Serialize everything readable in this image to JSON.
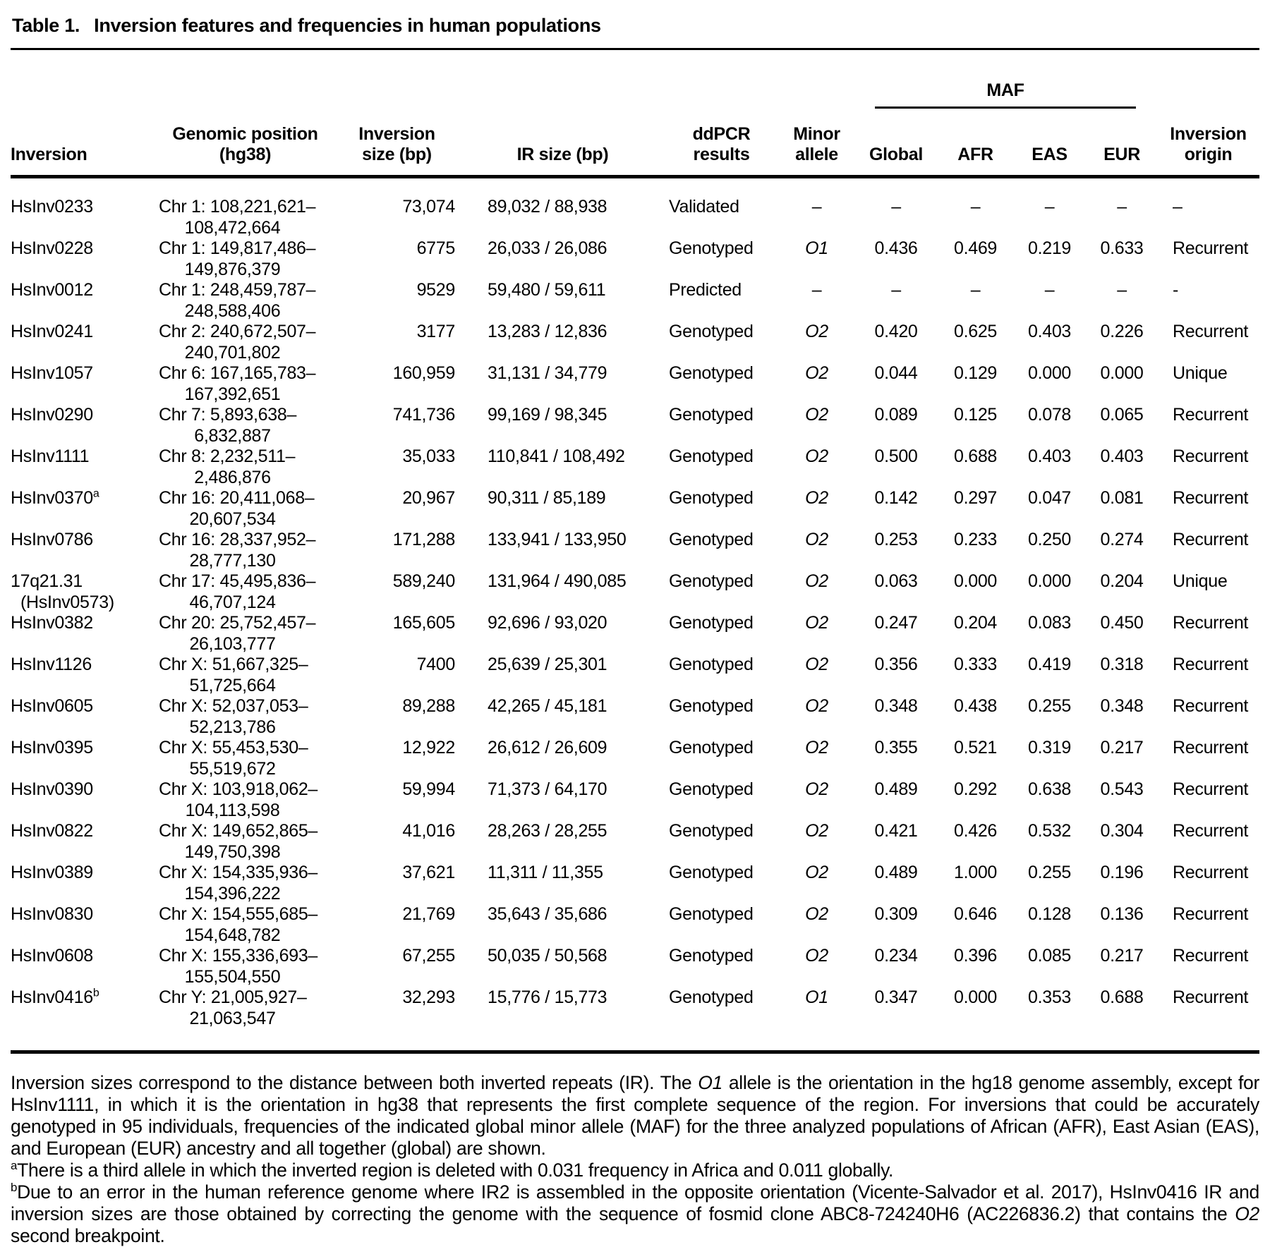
{
  "title": {
    "label": "Table 1.",
    "text": "Inversion features and frequencies in human populations"
  },
  "table": {
    "maf_header": "MAF",
    "headers": {
      "inversion": "Inversion",
      "position": "Genomic position\n(hg38)",
      "inv_size": "Inversion\nsize (bp)",
      "ir_size": "IR size (bp)",
      "ddpcr": "ddPCR\nresults",
      "minor": "Minor\nallele",
      "global": "Global",
      "afr": "AFR",
      "eas": "EAS",
      "eur": "EUR",
      "origin": "Inversion\norigin"
    },
    "rows": [
      {
        "name": "HsInv0233",
        "sup": "",
        "name2": "",
        "pos1": "Chr 1: 108,221,621–",
        "pos2": "108,472,664",
        "size": "73,074",
        "ir": "89,032 / 88,938",
        "ddpcr": "Validated",
        "minor": "–",
        "g": "–",
        "afr": "–",
        "eas": "–",
        "eur": "–",
        "origin": "–"
      },
      {
        "name": "HsInv0228",
        "sup": "",
        "name2": "",
        "pos1": "Chr 1: 149,817,486–",
        "pos2": "149,876,379",
        "size": "6775",
        "ir": "26,033 / 26,086",
        "ddpcr": "Genotyped",
        "minor": "O1",
        "g": "0.436",
        "afr": "0.469",
        "eas": "0.219",
        "eur": "0.633",
        "origin": "Recurrent"
      },
      {
        "name": "HsInv0012",
        "sup": "",
        "name2": "",
        "pos1": "Chr 1: 248,459,787–",
        "pos2": "248,588,406",
        "size": "9529",
        "ir": "59,480 / 59,611",
        "ddpcr": "Predicted",
        "minor": "–",
        "g": "–",
        "afr": "–",
        "eas": "–",
        "eur": "–",
        "origin": "-"
      },
      {
        "name": "HsInv0241",
        "sup": "",
        "name2": "",
        "pos1": "Chr 2: 240,672,507–",
        "pos2": "240,701,802",
        "size": "3177",
        "ir": "13,283 / 12,836",
        "ddpcr": "Genotyped",
        "minor": "O2",
        "g": "0.420",
        "afr": "0.625",
        "eas": "0.403",
        "eur": "0.226",
        "origin": "Recurrent"
      },
      {
        "name": "HsInv1057",
        "sup": "",
        "name2": "",
        "pos1": "Chr 6: 167,165,783–",
        "pos2": "167,392,651",
        "size": "160,959",
        "ir": "31,131 / 34,779",
        "ddpcr": "Genotyped",
        "minor": "O2",
        "g": "0.044",
        "afr": "0.129",
        "eas": "0.000",
        "eur": "0.000",
        "origin": "Unique"
      },
      {
        "name": "HsInv0290",
        "sup": "",
        "name2": "",
        "pos1": "Chr 7: 5,893,638–",
        "pos2": "6,832,887",
        "size": "741,736",
        "ir": "99,169 / 98,345",
        "ddpcr": "Genotyped",
        "minor": "O2",
        "g": "0.089",
        "afr": "0.125",
        "eas": "0.078",
        "eur": "0.065",
        "origin": "Recurrent"
      },
      {
        "name": "HsInv1111",
        "sup": "",
        "name2": "",
        "pos1": "Chr 8: 2,232,511–",
        "pos2": "2,486,876",
        "size": "35,033",
        "ir": "110,841 / 108,492",
        "ddpcr": "Genotyped",
        "minor": "O2",
        "g": "0.500",
        "afr": "0.688",
        "eas": "0.403",
        "eur": "0.403",
        "origin": "Recurrent"
      },
      {
        "name": "HsInv0370",
        "sup": "a",
        "name2": "",
        "pos1": "Chr 16: 20,411,068–",
        "pos2": "20,607,534",
        "size": "20,967",
        "ir": "90,311 / 85,189",
        "ddpcr": "Genotyped",
        "minor": "O2",
        "g": "0.142",
        "afr": "0.297",
        "eas": "0.047",
        "eur": "0.081",
        "origin": "Recurrent"
      },
      {
        "name": "HsInv0786",
        "sup": "",
        "name2": "",
        "pos1": "Chr 16: 28,337,952–",
        "pos2": "28,777,130",
        "size": "171,288",
        "ir": "133,941 / 133,950",
        "ddpcr": "Genotyped",
        "minor": "O2",
        "g": "0.253",
        "afr": "0.233",
        "eas": "0.250",
        "eur": "0.274",
        "origin": "Recurrent"
      },
      {
        "name": "17q21.31",
        "sup": "",
        "name2": "(HsInv0573)",
        "pos1": "Chr 17: 45,495,836–",
        "pos2": "46,707,124",
        "size": "589,240",
        "ir": "131,964 / 490,085",
        "ddpcr": "Genotyped",
        "minor": "O2",
        "g": "0.063",
        "afr": "0.000",
        "eas": "0.000",
        "eur": "0.204",
        "origin": "Unique"
      },
      {
        "name": "HsInv0382",
        "sup": "",
        "name2": "",
        "pos1": "Chr 20: 25,752,457–",
        "pos2": "26,103,777",
        "size": "165,605",
        "ir": "92,696 / 93,020",
        "ddpcr": "Genotyped",
        "minor": "O2",
        "g": "0.247",
        "afr": "0.204",
        "eas": "0.083",
        "eur": "0.450",
        "origin": "Recurrent"
      },
      {
        "name": "HsInv1126",
        "sup": "",
        "name2": "",
        "pos1": "Chr X: 51,667,325–",
        "pos2": "51,725,664",
        "size": "7400",
        "ir": "25,639 / 25,301",
        "ddpcr": "Genotyped",
        "minor": "O2",
        "g": "0.356",
        "afr": "0.333",
        "eas": "0.419",
        "eur": "0.318",
        "origin": "Recurrent"
      },
      {
        "name": "HsInv0605",
        "sup": "",
        "name2": "",
        "pos1": "Chr X: 52,037,053–",
        "pos2": "52,213,786",
        "size": "89,288",
        "ir": "42,265 / 45,181",
        "ddpcr": "Genotyped",
        "minor": "O2",
        "g": "0.348",
        "afr": "0.438",
        "eas": "0.255",
        "eur": "0.348",
        "origin": "Recurrent"
      },
      {
        "name": "HsInv0395",
        "sup": "",
        "name2": "",
        "pos1": "Chr X: 55,453,530–",
        "pos2": "55,519,672",
        "size": "12,922",
        "ir": "26,612 / 26,609",
        "ddpcr": "Genotyped",
        "minor": "O2",
        "g": "0.355",
        "afr": "0.521",
        "eas": "0.319",
        "eur": "0.217",
        "origin": "Recurrent"
      },
      {
        "name": "HsInv0390",
        "sup": "",
        "name2": "",
        "pos1": "Chr X: 103,918,062–",
        "pos2": "104,113,598",
        "size": "59,994",
        "ir": "71,373 / 64,170",
        "ddpcr": "Genotyped",
        "minor": "O2",
        "g": "0.489",
        "afr": "0.292",
        "eas": "0.638",
        "eur": "0.543",
        "origin": "Recurrent"
      },
      {
        "name": "HsInv0822",
        "sup": "",
        "name2": "",
        "pos1": "Chr X: 149,652,865–",
        "pos2": "149,750,398",
        "size": "41,016",
        "ir": "28,263 / 28,255",
        "ddpcr": "Genotyped",
        "minor": "O2",
        "g": "0.421",
        "afr": "0.426",
        "eas": "0.532",
        "eur": "0.304",
        "origin": "Recurrent"
      },
      {
        "name": "HsInv0389",
        "sup": "",
        "name2": "",
        "pos1": "Chr X: 154,335,936–",
        "pos2": "154,396,222",
        "size": "37,621",
        "ir": "11,311 / 11,355",
        "ddpcr": "Genotyped",
        "minor": "O2",
        "g": "0.489",
        "afr": "1.000",
        "eas": "0.255",
        "eur": "0.196",
        "origin": "Recurrent"
      },
      {
        "name": "HsInv0830",
        "sup": "",
        "name2": "",
        "pos1": "Chr X: 154,555,685–",
        "pos2": "154,648,782",
        "size": "21,769",
        "ir": "35,643 / 35,686",
        "ddpcr": "Genotyped",
        "minor": "O2",
        "g": "0.309",
        "afr": "0.646",
        "eas": "0.128",
        "eur": "0.136",
        "origin": "Recurrent"
      },
      {
        "name": "HsInv0608",
        "sup": "",
        "name2": "",
        "pos1": "Chr X: 155,336,693–",
        "pos2": "155,504,550",
        "size": "67,255",
        "ir": "50,035 / 50,568",
        "ddpcr": "Genotyped",
        "minor": "O2",
        "g": "0.234",
        "afr": "0.396",
        "eas": "0.085",
        "eur": "0.217",
        "origin": "Recurrent"
      },
      {
        "name": "HsInv0416",
        "sup": "b",
        "name2": "",
        "pos1": "Chr Y: 21,005,927–",
        "pos2": "21,063,547",
        "size": "32,293",
        "ir": "15,776 / 15,773",
        "ddpcr": "Genotyped",
        "minor": "O1",
        "g": "0.347",
        "afr": "0.000",
        "eas": "0.353",
        "eur": "0.688",
        "origin": "Recurrent"
      }
    ]
  },
  "footer": {
    "general": [
      {
        "t": "Inversion sizes correspond to the distance between both inverted repeats (IR). The "
      },
      {
        "t": "O1",
        "i": true
      },
      {
        "t": " allele is the orientation in the hg18 genome assembly, except for HsInv1111, in which it is the orientation in hg38 that represents the first complete sequence of the region. For inversions that could be accurately genotyped in 95 individuals, frequencies of the indicated global minor allele (MAF) for the three analyzed populations of African (AFR), East Asian (EAS), and European (EUR) ancestry and all together (global) are shown."
      }
    ],
    "note_a": [
      {
        "t": "a",
        "s": true
      },
      {
        "t": "There is a third allele in which the inverted region is deleted with 0.031 frequency in Africa and 0.011 globally."
      }
    ],
    "note_b": [
      {
        "t": "b",
        "s": true
      },
      {
        "t": "Due to an error in the human reference genome where IR2 is assembled in the opposite orientation (Vicente-Salvador et al. 2017), HsInv0416 IR and inversion sizes are those obtained by correcting the genome with the sequence of fosmid clone ABC8-724240H6 (AC226836.2) that contains the "
      },
      {
        "t": "O2",
        "i": true
      },
      {
        "t": " second breakpoint."
      }
    ]
  }
}
